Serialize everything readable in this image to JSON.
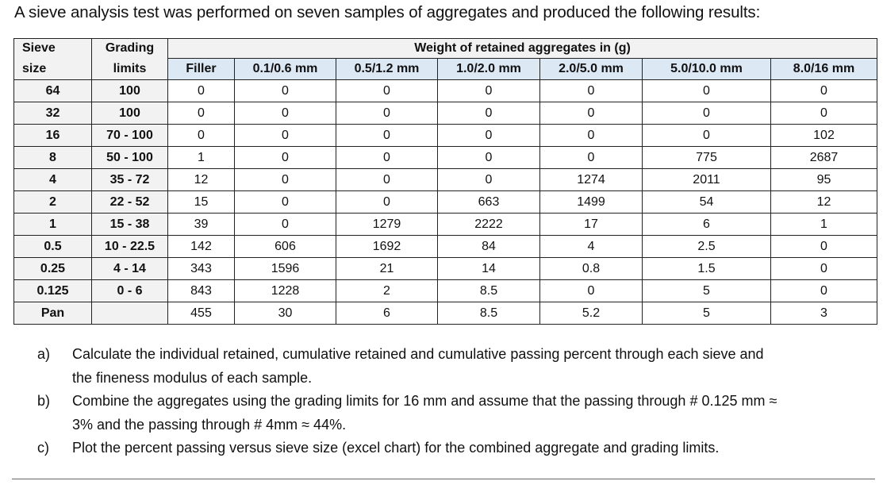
{
  "intro": "A sieve analysis test was performed on seven samples of aggregates and produced the following results:",
  "table": {
    "head_sieve": [
      "Sieve",
      "size"
    ],
    "head_grading": [
      "Grading",
      "limits"
    ],
    "head_weight": "Weight of retained aggregates in (g)",
    "columns": [
      "Filler",
      "0.1/0.6 mm",
      "0.5/1.2 mm",
      "1.0/2.0 mm",
      "2.0/5.0 mm",
      "5.0/10.0 mm",
      "8.0/16 mm"
    ],
    "rows": [
      {
        "sieve": "64",
        "limits": "100",
        "values": [
          "0",
          "0",
          "0",
          "0",
          "0",
          "0",
          "0"
        ]
      },
      {
        "sieve": "32",
        "limits": "100",
        "values": [
          "0",
          "0",
          "0",
          "0",
          "0",
          "0",
          "0"
        ]
      },
      {
        "sieve": "16",
        "limits": "70 - 100",
        "values": [
          "0",
          "0",
          "0",
          "0",
          "0",
          "0",
          "102"
        ]
      },
      {
        "sieve": "8",
        "limits": "50 - 100",
        "values": [
          "1",
          "0",
          "0",
          "0",
          "0",
          "775",
          "2687"
        ]
      },
      {
        "sieve": "4",
        "limits": "35 - 72",
        "values": [
          "12",
          "0",
          "0",
          "0",
          "1274",
          "2011",
          "95"
        ]
      },
      {
        "sieve": "2",
        "limits": "22 - 52",
        "values": [
          "15",
          "0",
          "0",
          "663",
          "1499",
          "54",
          "12"
        ]
      },
      {
        "sieve": "1",
        "limits": "15 - 38",
        "values": [
          "39",
          "0",
          "1279",
          "2222",
          "17",
          "6",
          "1"
        ]
      },
      {
        "sieve": "0.5",
        "limits": "10 - 22.5",
        "values": [
          "142",
          "606",
          "1692",
          "84",
          "4",
          "2.5",
          "0"
        ]
      },
      {
        "sieve": "0.25",
        "limits": "4 - 14",
        "values": [
          "343",
          "1596",
          "21",
          "14",
          "0.8",
          "1.5",
          "0"
        ]
      },
      {
        "sieve": "0.125",
        "limits": "0 - 6",
        "values": [
          "843",
          "1228",
          "2",
          "8.5",
          "0",
          "5",
          "0"
        ]
      },
      {
        "sieve": "Pan",
        "limits": "",
        "values": [
          "455",
          "30",
          "6",
          "8.5",
          "5.2",
          "5",
          "3"
        ]
      }
    ]
  },
  "questions": [
    {
      "label": "a)",
      "lines": [
        "Calculate the individual retained, cumulative retained and cumulative passing percent through each sieve and",
        "the fineness modulus of each sample."
      ]
    },
    {
      "label": "b)",
      "lines": [
        "Combine the aggregates using the grading limits for 16 mm and assume that the passing through # 0.125 mm ≈",
        "3% and the passing through # 4mm ≈ 44%."
      ]
    },
    {
      "label": "c)",
      "lines": [
        "Plot the percent passing versus sieve size (excel chart) for the combined aggregate and grading limits."
      ]
    }
  ]
}
